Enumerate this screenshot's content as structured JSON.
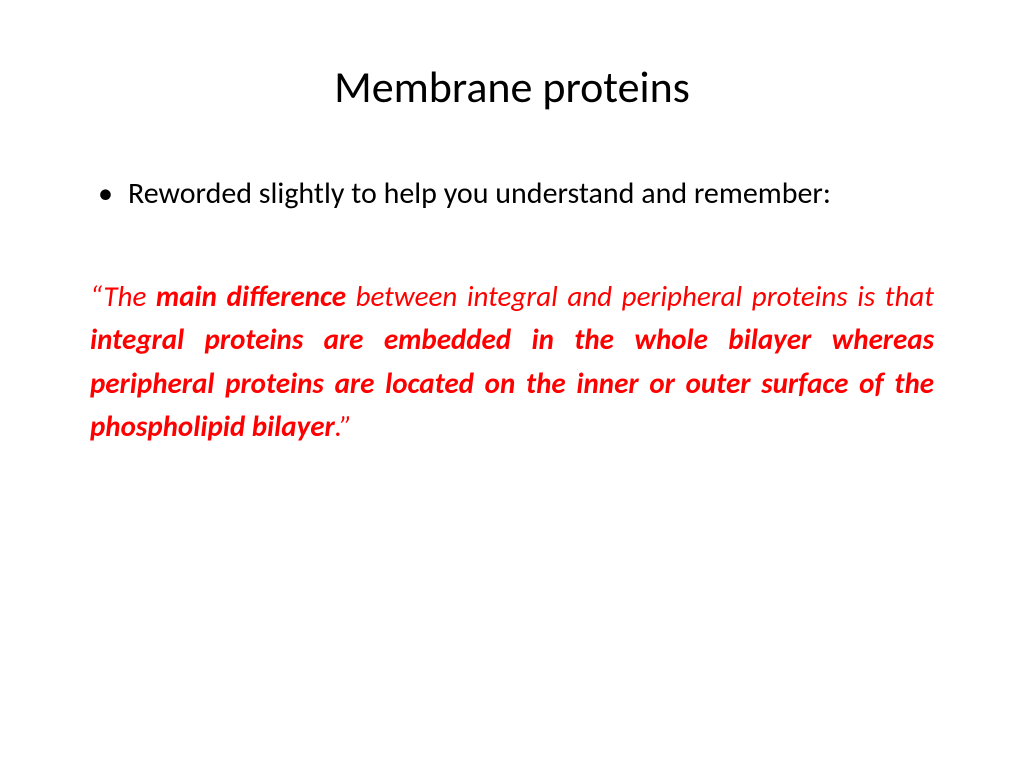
{
  "slide": {
    "title": "Membrane proteins",
    "bullet": "Reworded slightly to help you understand and remember:",
    "quote": {
      "open_mark": "“The ",
      "bold1": "main difference",
      "mid1": " between integral and peripheral proteins is that ",
      "bold2": "integral proteins are embedded in the whole bilayer whereas peripheral proteins are located on the inner or outer surface of the phospholipid bilayer",
      "closing": ".”"
    },
    "colors": {
      "title_color": "#000000",
      "body_color": "#000000",
      "quote_color": "#ff0000",
      "background": "#ffffff"
    },
    "typography": {
      "title_fontsize": 44,
      "body_fontsize": 30,
      "quote_fontsize": 29,
      "font_family": "Calibri"
    }
  }
}
